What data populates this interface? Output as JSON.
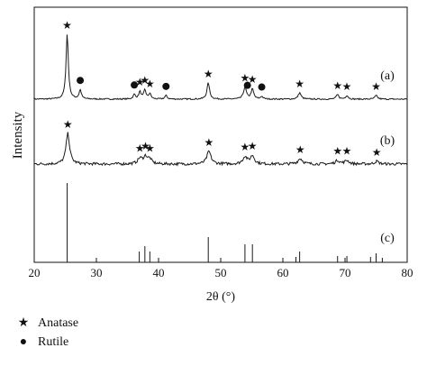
{
  "chart_data": {
    "type": "line",
    "xlabel": "2θ (°)",
    "ylabel": "Intensity",
    "xlim": [
      20,
      80
    ],
    "xticks": [
      20,
      30,
      40,
      50,
      60,
      70,
      80
    ],
    "grid": false,
    "legend_placement": "bottom-left",
    "legend": [
      {
        "label": "Anatase",
        "marker": "star"
      },
      {
        "label": "Rutile",
        "marker": "circle"
      }
    ],
    "series": [
      {
        "name": "(a)",
        "peaks": [
          {
            "x": 25.3,
            "h": 72,
            "w": 0.22
          },
          {
            "x": 27.4,
            "h": 10,
            "w": 0.22
          },
          {
            "x": 36.1,
            "h": 5,
            "w": 0.22
          },
          {
            "x": 37.0,
            "h": 8,
            "w": 0.22
          },
          {
            "x": 37.8,
            "h": 10,
            "w": 0.22
          },
          {
            "x": 38.6,
            "h": 6,
            "w": 0.22
          },
          {
            "x": 41.2,
            "h": 4,
            "w": 0.22
          },
          {
            "x": 48.0,
            "h": 18,
            "w": 0.25
          },
          {
            "x": 53.9,
            "h": 13,
            "w": 0.28
          },
          {
            "x": 55.1,
            "h": 11,
            "w": 0.25
          },
          {
            "x": 56.6,
            "h": 3,
            "w": 0.22
          },
          {
            "x": 62.7,
            "h": 7,
            "w": 0.28
          },
          {
            "x": 68.8,
            "h": 5,
            "w": 0.25
          },
          {
            "x": 70.3,
            "h": 4,
            "w": 0.25
          },
          {
            "x": 75.0,
            "h": 4,
            "w": 0.25
          }
        ],
        "anatase_markers": [
          25.3,
          37.0,
          37.8,
          38.6,
          48.0,
          53.9,
          55.1,
          62.7,
          68.8,
          70.3,
          75.0
        ],
        "rutile_markers": [
          27.4,
          36.1,
          41.2,
          54.3,
          56.6
        ],
        "label": "(a)"
      },
      {
        "name": "(b)",
        "peaks": [
          {
            "x": 25.4,
            "h": 34,
            "w": 0.35
          },
          {
            "x": 37.0,
            "h": 6,
            "w": 0.4
          },
          {
            "x": 37.9,
            "h": 8,
            "w": 0.4
          },
          {
            "x": 38.6,
            "h": 5,
            "w": 0.35
          },
          {
            "x": 48.1,
            "h": 14,
            "w": 0.4
          },
          {
            "x": 53.9,
            "h": 8,
            "w": 0.4
          },
          {
            "x": 55.1,
            "h": 9,
            "w": 0.4
          },
          {
            "x": 62.8,
            "h": 6,
            "w": 0.45
          },
          {
            "x": 68.8,
            "h": 4,
            "w": 0.4
          },
          {
            "x": 70.3,
            "h": 4,
            "w": 0.4
          },
          {
            "x": 75.1,
            "h": 3,
            "w": 0.4
          }
        ],
        "anatase_markers": [
          25.4,
          37.0,
          37.9,
          38.6,
          48.1,
          53.9,
          55.1,
          62.8,
          68.8,
          70.3,
          75.1
        ],
        "label": "(b)"
      },
      {
        "name": "(c)",
        "type": "reference_sticks",
        "x": [
          25.3,
          36.9,
          37.8,
          38.6,
          48.0,
          53.9,
          55.1,
          62.1,
          62.7,
          68.8,
          70.3,
          74.1,
          75.0,
          76.0
        ],
        "values": [
          88,
          12,
          18,
          12,
          28,
          20,
          20,
          6,
          12,
          7,
          7,
          6,
          10,
          5
        ],
        "label": "(c)"
      }
    ]
  }
}
